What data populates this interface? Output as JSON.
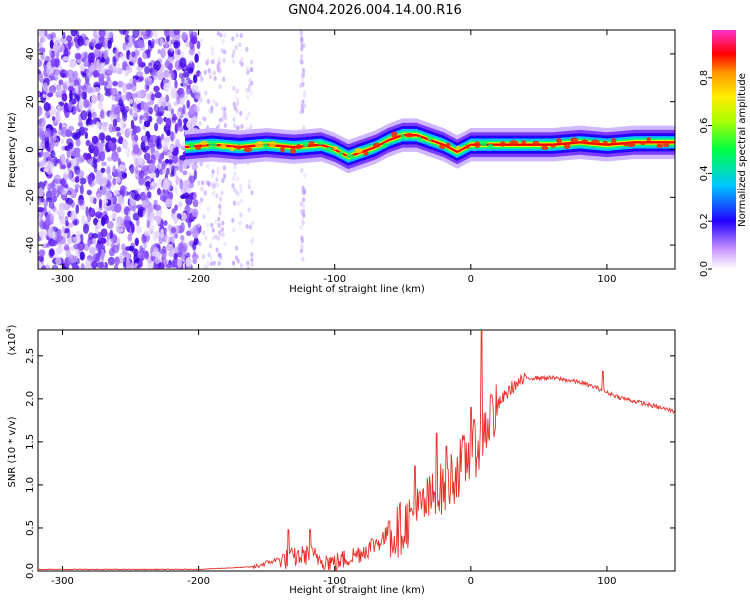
{
  "title": "GN04.2026.004.14.00.R16",
  "chart_data": [
    {
      "type": "heatmap",
      "name": "spectrogram",
      "xlabel": "Height of straight line (km)",
      "ylabel": "Frequency (Hz)",
      "xlim": [
        -318,
        150
      ],
      "ylim": [
        -50,
        50
      ],
      "xticks": [
        -300,
        -200,
        -100,
        0,
        100
      ],
      "yticks": [
        -40,
        -20,
        0,
        20,
        40
      ],
      "xtick_labels": [
        "-300",
        "-200",
        "-100",
        "0",
        "100"
      ],
      "ytick_labels": [
        "-40",
        "-20",
        "0",
        "20",
        "40"
      ],
      "colorbar": {
        "label": "Normalized spectral amplitude",
        "range": [
          0,
          1
        ],
        "ticks": [
          0.0,
          0.2,
          0.4,
          0.6,
          0.8
        ],
        "tick_labels": [
          "0.0",
          "0.2",
          "0.4",
          "0.6",
          "0.8"
        ]
      },
      "ridge": {
        "x": [
          -210,
          -190,
          -170,
          -150,
          -130,
          -110,
          -100,
          -90,
          -80,
          -70,
          -60,
          -50,
          -40,
          -30,
          -20,
          -10,
          0,
          20,
          40,
          60,
          80,
          100,
          120,
          150
        ],
        "y": [
          1,
          2,
          1,
          2,
          1,
          2,
          0,
          -3,
          -1,
          1,
          4,
          6,
          6,
          4,
          2,
          -1,
          2,
          2,
          2,
          2,
          3,
          2,
          3,
          3
        ]
      }
    },
    {
      "type": "line",
      "name": "snr",
      "xlabel": "Height of straight line (km)",
      "ylabel": "SNR (10 * v/v)",
      "yscale_label": "(x10",
      "yscale_exp": "4",
      "xlim": [
        -318,
        150
      ],
      "ylim": [
        0,
        2.8
      ],
      "xticks": [
        -300,
        -200,
        -100,
        0,
        100
      ],
      "yticks": [
        0.0,
        0.5,
        1.0,
        1.5,
        2.0,
        2.5
      ],
      "xtick_labels": [
        "-300",
        "-200",
        "-100",
        "0",
        "100"
      ],
      "ytick_labels": [
        "0.0",
        "0.5",
        "1.0",
        "1.5",
        "2.0",
        "2.5"
      ],
      "color": "#e8302a",
      "envelope_x": [
        -318,
        -200,
        -160,
        -140,
        -120,
        -100,
        -80,
        -60,
        -40,
        -20,
        0,
        5,
        10,
        20,
        30,
        40,
        60,
        80,
        95,
        100,
        110,
        120,
        140,
        150
      ],
      "envelope_y": [
        0.02,
        0.02,
        0.05,
        0.15,
        0.22,
        0.12,
        0.25,
        0.45,
        0.75,
        1.05,
        1.45,
        1.55,
        1.75,
        1.95,
        2.15,
        2.25,
        2.25,
        2.2,
        2.12,
        2.08,
        2.02,
        1.98,
        1.9,
        1.86
      ],
      "spikes": [
        {
          "x": -134,
          "y": 0.48
        },
        {
          "x": -118,
          "y": 0.48
        },
        {
          "x": -60,
          "y": 0.58
        },
        {
          "x": -41,
          "y": 1.22
        },
        {
          "x": -25,
          "y": 1.6
        },
        {
          "x": -18,
          "y": 1.45
        },
        {
          "x": 0,
          "y": 1.9
        },
        {
          "x": 8,
          "y": 2.8
        },
        {
          "x": 15,
          "y": 2.05
        },
        {
          "x": 97,
          "y": 2.32
        }
      ]
    }
  ]
}
